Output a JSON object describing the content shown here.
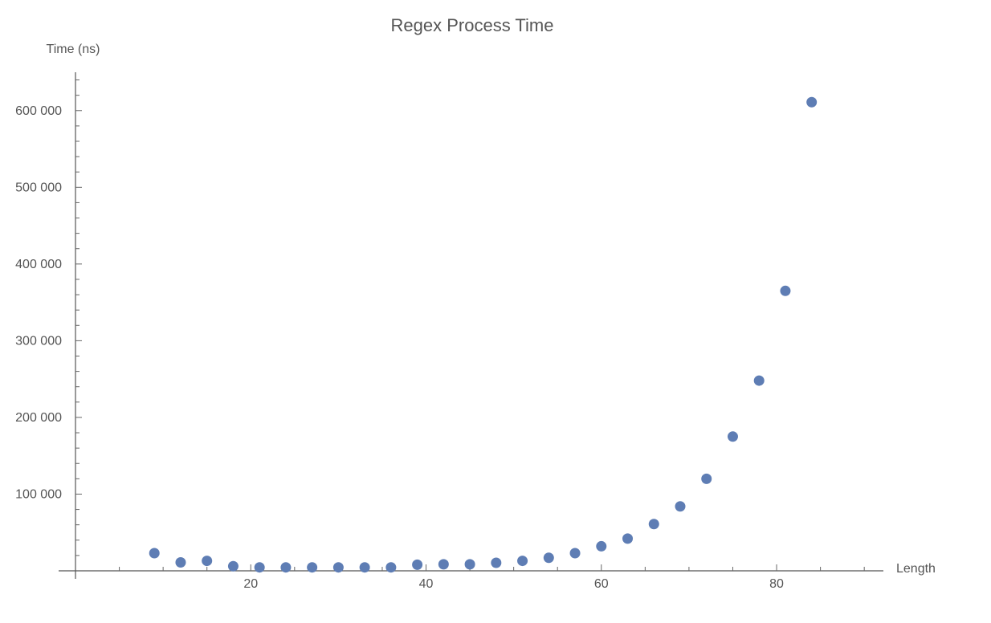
{
  "chart_data": {
    "type": "scatter",
    "title": "Regex Process Time",
    "xlabel": "Length",
    "ylabel": "Time (ns)",
    "xlim": [
      0,
      92
    ],
    "ylim": [
      0,
      650000
    ],
    "x_ticks": [
      20,
      40,
      60,
      80
    ],
    "x_tick_labels": [
      "20",
      "40",
      "60",
      "80"
    ],
    "y_ticks": [
      100000,
      200000,
      300000,
      400000,
      500000,
      600000
    ],
    "y_tick_labels": [
      "100 000",
      "200 000",
      "300 000",
      "400 000",
      "500 000",
      "600 000"
    ],
    "grid": false,
    "point_color": "#5e7db4",
    "series": [
      {
        "x": [
          9,
          12,
          15,
          18,
          21,
          24,
          27,
          30,
          33,
          36,
          39,
          42,
          45,
          48,
          51,
          54,
          57,
          60,
          63,
          66,
          69,
          72,
          75,
          78,
          81,
          84
        ],
        "y": [
          23000,
          11000,
          13000,
          6000,
          4500,
          4500,
          4500,
          4500,
          4500,
          4500,
          8000,
          8500,
          8500,
          10500,
          13000,
          17000,
          23000,
          32000,
          42000,
          61000,
          84000,
          120000,
          175000,
          248000,
          365000,
          611000
        ]
      }
    ]
  }
}
